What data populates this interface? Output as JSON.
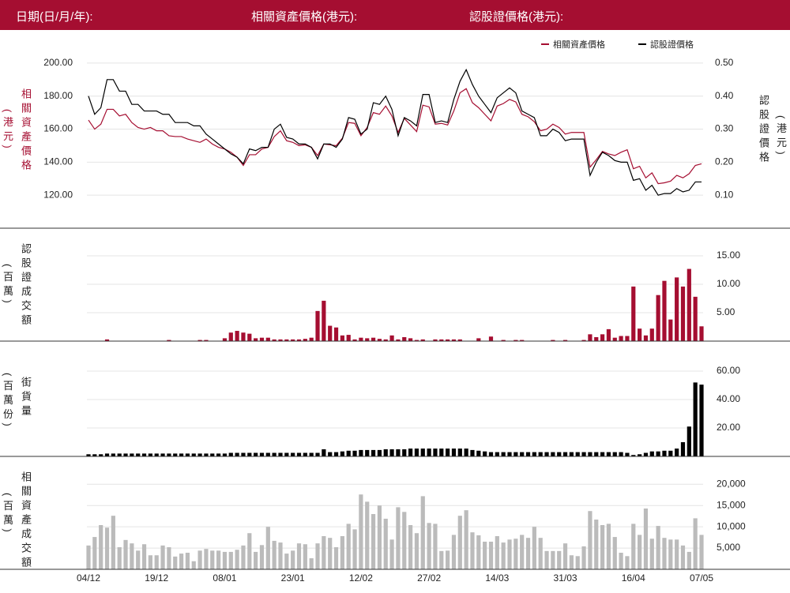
{
  "header": {
    "date_label": "日期(日/月/年):",
    "underlying_label": "相關資產價格(港元):",
    "warrant_label": "認股證價格(港元):"
  },
  "chart_data": [
    {
      "type": "line",
      "ylabel": "相關資產價格",
      "ylabel_unit": "(港元)",
      "y2label": "認股證價格",
      "y2label_unit": "(港元)",
      "legend": "upper right",
      "grid": true,
      "ylim": [
        100,
        210
      ],
      "yticks": [
        {
          "value": 120,
          "label": "120.00"
        },
        {
          "value": 140,
          "label": "140.00"
        },
        {
          "value": 160,
          "label": "160.00"
        },
        {
          "value": 180,
          "label": "180.00"
        },
        {
          "value": 200,
          "label": "200.00"
        }
      ],
      "y2lim": [
        0,
        0.55
      ],
      "y2ticks": [
        {
          "value": 0.1,
          "label": "0.10"
        },
        {
          "value": 0.2,
          "label": "0.20"
        },
        {
          "value": 0.3,
          "label": "0.30"
        },
        {
          "value": 0.4,
          "label": "0.40"
        },
        {
          "value": 0.5,
          "label": "0.50"
        }
      ],
      "series": [
        {
          "name": "相關資產價格",
          "color": "#a50e31",
          "values": [
            165.5,
            160,
            163,
            172,
            172,
            168,
            169,
            164,
            161,
            160,
            161,
            159,
            159,
            156,
            155.5,
            155.5,
            154,
            153,
            152,
            154,
            151,
            149,
            148,
            146,
            143,
            138,
            144.5,
            144.5,
            148,
            149,
            155.5,
            159,
            153,
            152,
            150,
            150.5,
            149,
            144,
            151,
            150.5,
            150,
            154.5,
            164,
            163.5,
            156,
            161,
            170,
            169,
            174,
            168,
            158,
            166.5,
            162.5,
            158.5,
            174.5,
            173.5,
            163,
            163.5,
            162.5,
            171,
            182,
            184.5,
            176,
            173,
            169,
            165,
            174,
            175.5,
            178,
            176.5,
            169,
            167.5,
            164.5,
            159,
            160,
            163,
            161,
            157,
            158,
            158,
            158,
            137,
            141.5,
            146.5,
            145,
            144,
            146,
            147.5,
            136,
            137.5,
            130.5,
            133.5,
            127,
            127.5,
            128.5,
            132,
            130.5,
            133,
            138,
            139
          ]
        },
        {
          "name": "認股證價格",
          "color": "#000000",
          "axis": "y2",
          "values": [
            0.4,
            0.345,
            0.365,
            0.45,
            0.45,
            0.415,
            0.415,
            0.375,
            0.375,
            0.355,
            0.355,
            0.355,
            0.345,
            0.345,
            0.32,
            0.32,
            0.32,
            0.31,
            0.31,
            0.285,
            0.27,
            0.255,
            0.24,
            0.225,
            0.215,
            0.195,
            0.24,
            0.235,
            0.245,
            0.245,
            0.3,
            0.315,
            0.275,
            0.27,
            0.255,
            0.255,
            0.245,
            0.21,
            0.255,
            0.255,
            0.245,
            0.27,
            0.335,
            0.33,
            0.285,
            0.3,
            0.38,
            0.375,
            0.4,
            0.36,
            0.28,
            0.335,
            0.325,
            0.31,
            0.405,
            0.405,
            0.32,
            0.325,
            0.32,
            0.39,
            0.445,
            0.48,
            0.435,
            0.4,
            0.375,
            0.35,
            0.395,
            0.41,
            0.425,
            0.41,
            0.355,
            0.345,
            0.335,
            0.28,
            0.28,
            0.3,
            0.29,
            0.265,
            0.27,
            0.27,
            0.27,
            0.16,
            0.2,
            0.23,
            0.22,
            0.205,
            0.2,
            0.2,
            0.145,
            0.15,
            0.115,
            0.13,
            0.1,
            0.105,
            0.105,
            0.12,
            0.11,
            0.115,
            0.14,
            0.14
          ]
        }
      ]
    },
    {
      "type": "bar",
      "ylabel": "認股證成交額",
      "ylabel_unit": "(百萬)",
      "color": "#a50e31",
      "grid": true,
      "ylim": [
        0,
        20
      ],
      "yticks": [
        {
          "value": 5,
          "label": "5.00"
        },
        {
          "value": 10,
          "label": "10.00"
        },
        {
          "value": 15,
          "label": "15.00"
        }
      ],
      "values": [
        0,
        0,
        0,
        0.3,
        0,
        0,
        0,
        0,
        0,
        0,
        0,
        0,
        0,
        0.2,
        0,
        0,
        0,
        0,
        0.2,
        0.2,
        0,
        0,
        0.5,
        1.5,
        1.8,
        1.5,
        1.3,
        0.5,
        0.6,
        0.6,
        0.3,
        0.3,
        0.3,
        0.3,
        0.3,
        0.4,
        0.6,
        5.3,
        7.1,
        2.7,
        2.4,
        1.0,
        1.1,
        0.3,
        0.6,
        0.5,
        0.6,
        0.4,
        0.3,
        1.0,
        0.3,
        0.7,
        0.5,
        0.2,
        0.3,
        0,
        0.3,
        0.3,
        0.3,
        0.3,
        0.3,
        0,
        0,
        0.5,
        0,
        0.8,
        0,
        0.2,
        0,
        0.2,
        0.2,
        0,
        0,
        0,
        0,
        0.2,
        0,
        0.2,
        0,
        0,
        0.2,
        1.2,
        0.7,
        1.2,
        2.1,
        0.6,
        0.9,
        0.9,
        9.6,
        2.2,
        1.0,
        2.2,
        8.1,
        10.6,
        3.8,
        11.2,
        9.6,
        12.7,
        7.8,
        2.6
      ]
    },
    {
      "type": "bar",
      "ylabel": "街貨量",
      "ylabel_unit": "(百萬份)",
      "color": "#000000",
      "grid": true,
      "ylim": [
        0,
        80
      ],
      "yticks": [
        {
          "value": 20,
          "label": "20.00"
        },
        {
          "value": 40,
          "label": "40.00"
        },
        {
          "value": 60,
          "label": "60.00"
        }
      ],
      "values": [
        1.5,
        1.5,
        1.5,
        2,
        2,
        2,
        2,
        2,
        2,
        2,
        2,
        2,
        2,
        2,
        2,
        2,
        2,
        2,
        2,
        2,
        2,
        2,
        2,
        2.5,
        2.5,
        2.5,
        2.5,
        2.5,
        2.5,
        2.5,
        2.5,
        2.5,
        2.5,
        2.5,
        2.5,
        2.5,
        2.5,
        2.5,
        5,
        3,
        3,
        3.5,
        4,
        4,
        4.5,
        4.5,
        4.5,
        4.5,
        5,
        5,
        5,
        5,
        5.5,
        5.5,
        5.5,
        5.5,
        5.5,
        5.5,
        5.5,
        5.5,
        5.5,
        5.5,
        4.5,
        4,
        3.5,
        3,
        3,
        3,
        3,
        3,
        3,
        3,
        3,
        3,
        3,
        3,
        3,
        3,
        3,
        3,
        3,
        3,
        3,
        3,
        3,
        3,
        3,
        2.5,
        1,
        1.5,
        2.5,
        3.5,
        3.5,
        4,
        4,
        5.5,
        10,
        21,
        52,
        50.5
      ]
    },
    {
      "type": "bar",
      "ylabel": "相關資產成交額",
      "ylabel_unit": "(百萬)",
      "color": "#bbbbbb",
      "grid": true,
      "ylim": [
        0,
        26000
      ],
      "yticks": [
        {
          "value": 5000,
          "label": "5,000"
        },
        {
          "value": 10000,
          "label": "10,000"
        },
        {
          "value": 15000,
          "label": "15,000"
        },
        {
          "value": 20000,
          "label": "20,000"
        }
      ],
      "categories": [
        "04/12",
        null,
        null,
        null,
        null,
        null,
        null,
        null,
        null,
        null,
        null,
        "19/12",
        null,
        null,
        null,
        null,
        null,
        null,
        null,
        null,
        null,
        null,
        "08/01",
        null,
        null,
        null,
        null,
        null,
        null,
        null,
        null,
        null,
        null,
        "23/01",
        null,
        null,
        null,
        null,
        null,
        null,
        null,
        null,
        null,
        null,
        "12/02",
        null,
        null,
        null,
        null,
        null,
        null,
        null,
        null,
        null,
        null,
        "27/02",
        null,
        null,
        null,
        null,
        null,
        null,
        null,
        null,
        null,
        null,
        "14/03",
        null,
        null,
        null,
        null,
        null,
        null,
        null,
        null,
        null,
        null,
        "31/03",
        null,
        null,
        null,
        null,
        null,
        null,
        null,
        null,
        null,
        null,
        "16/04",
        null,
        null,
        null,
        null,
        null,
        null,
        null,
        null,
        null,
        null,
        "07/05"
      ],
      "values": [
        5600,
        7600,
        10400,
        9800,
        12600,
        5200,
        6900,
        6100,
        4400,
        5900,
        3300,
        3300,
        5600,
        5200,
        3000,
        3700,
        3900,
        1900,
        4400,
        4800,
        4400,
        4400,
        4100,
        4100,
        4600,
        5600,
        8500,
        4100,
        5700,
        10000,
        6700,
        6300,
        3700,
        4400,
        6100,
        5900,
        2600,
        6100,
        7800,
        7400,
        5200,
        7800,
        10700,
        9400,
        17600,
        15900,
        13000,
        15000,
        11900,
        7000,
        14600,
        13500,
        10400,
        8500,
        17200,
        10900,
        10700,
        4300,
        4400,
        8100,
        12600,
        13900,
        8700,
        8000,
        6500,
        6500,
        7800,
        6300,
        7000,
        7200,
        8100,
        7400,
        10000,
        7400,
        4300,
        4300,
        4300,
        6100,
        3300,
        3100,
        5400,
        13700,
        11700,
        10400,
        10700,
        7600,
        3900,
        3100,
        10700,
        8100,
        14300,
        7200,
        10200,
        7400,
        7000,
        7000,
        5600,
        4100,
        12000,
        8100
      ]
    }
  ]
}
